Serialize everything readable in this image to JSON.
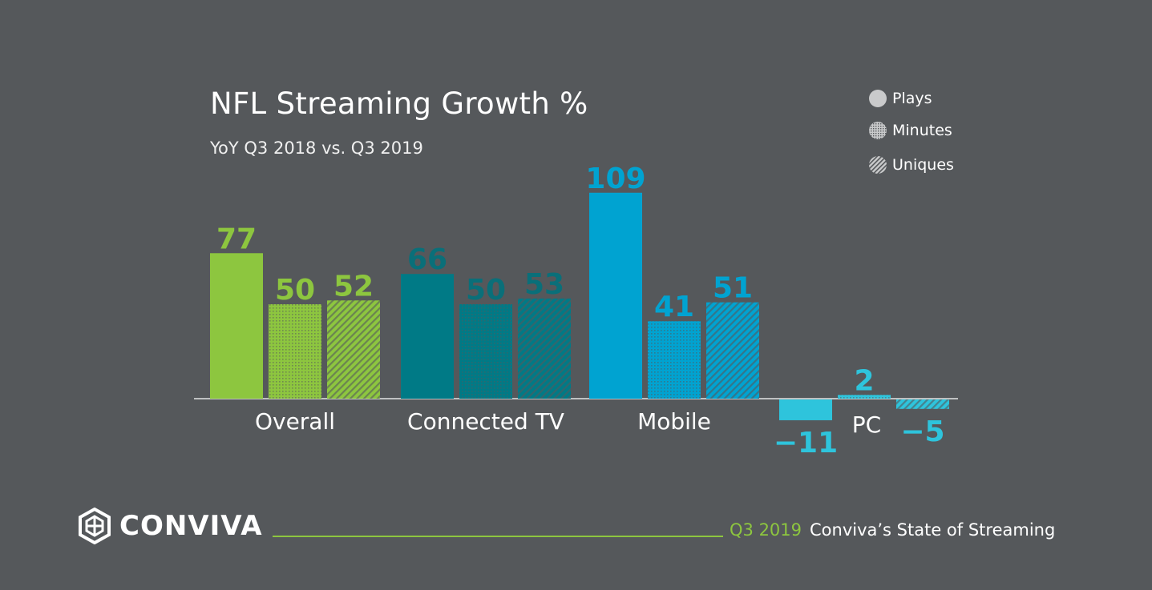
{
  "chart_data": {
    "type": "bar",
    "title": "NFL Streaming Growth %",
    "subtitle": "YoY Q3 2018 vs. Q3 2019",
    "categories": [
      "Overall",
      "Connected TV",
      "Mobile",
      "PC"
    ],
    "series": [
      {
        "name": "Plays",
        "values": [
          77,
          66,
          109,
          -11
        ]
      },
      {
        "name": "Minutes",
        "values": [
          50,
          50,
          41,
          2
        ]
      },
      {
        "name": "Uniques",
        "values": [
          52,
          53,
          51,
          -5
        ]
      }
    ],
    "value_labels": [
      [
        "77",
        "50",
        "52"
      ],
      [
        "66",
        "50",
        "53"
      ],
      [
        "109",
        "41",
        "51"
      ],
      [
        "−11",
        "2",
        "−5"
      ]
    ],
    "category_colors": [
      "#8dc63f",
      "#007a86",
      "#00a3d1",
      "#2ec4dc"
    ],
    "label_colors": [
      "#8dc63f",
      "#0a6f79",
      "#00a3d1",
      "#2ec4dc"
    ],
    "series_patterns": [
      "solid",
      "dots",
      "stripes"
    ],
    "legend_position": "top-right",
    "grid": false,
    "ylim": [
      -15,
      115
    ]
  },
  "legend": {
    "items": [
      {
        "label": "Plays",
        "pattern": "solid"
      },
      {
        "label": "Minutes",
        "pattern": "dots"
      },
      {
        "label": "Uniques",
        "pattern": "stripes"
      }
    ]
  },
  "footer": {
    "brand": "CONVIVA",
    "quarter": "Q3 2019",
    "report": "Conviva’s State of Streaming",
    "accent_color": "#8dc63f"
  }
}
